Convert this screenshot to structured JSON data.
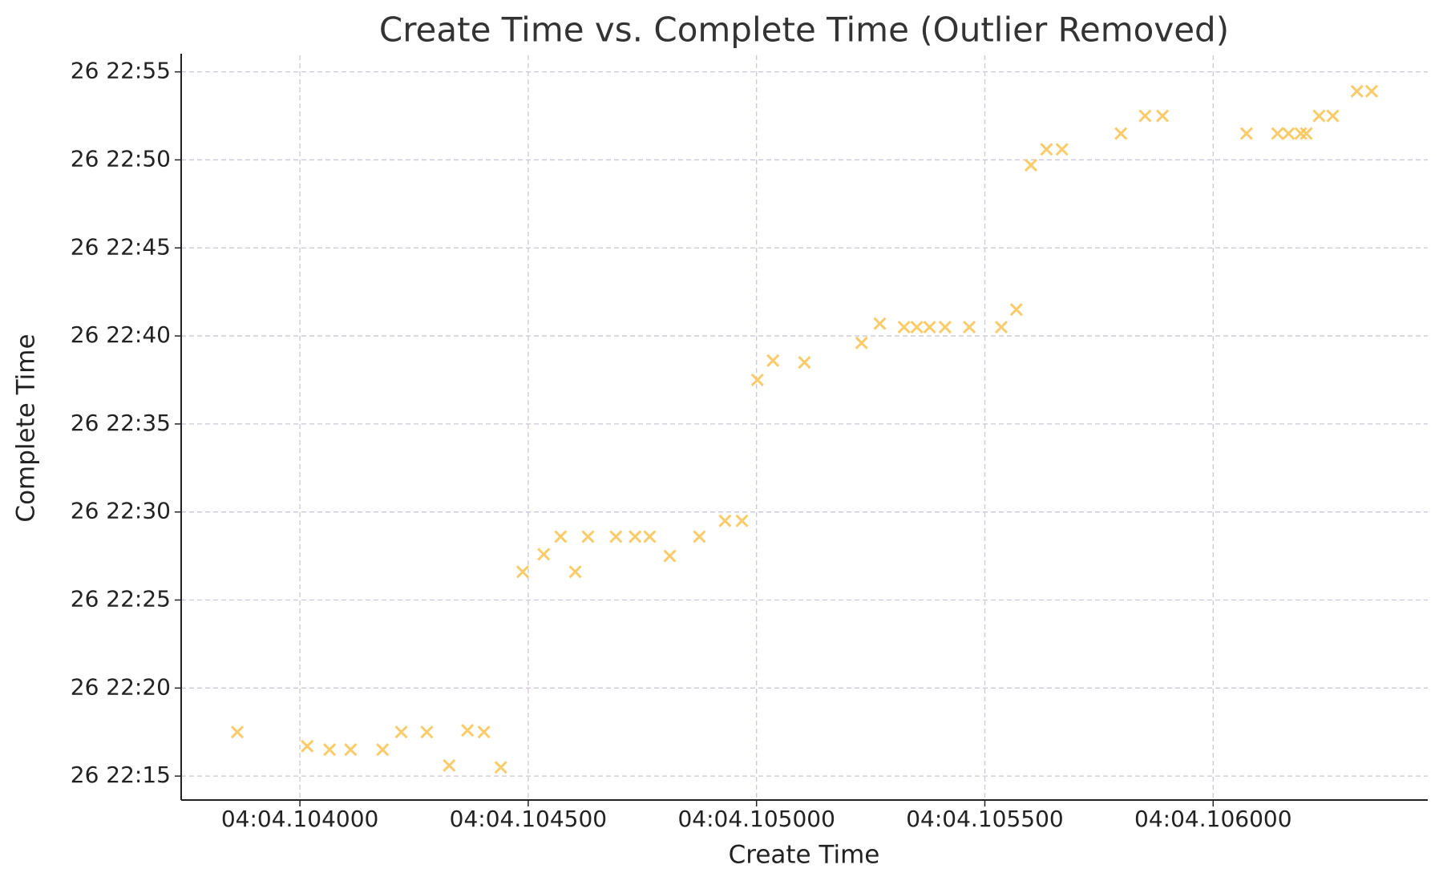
{
  "chart_data": {
    "type": "scatter",
    "title": "Create Time vs. Complete Time (Outlier Removed)",
    "x_label": "Create Time",
    "y_label": "Complete Time",
    "marker": "x",
    "grid": true,
    "xlim": [
      244.10374,
      244.10647
    ],
    "ylim": [
      1333.64,
      1375.94
    ],
    "xticks": [
      {
        "value": 244.104,
        "label": "04:04.104000"
      },
      {
        "value": 244.1045,
        "label": "04:04.104500"
      },
      {
        "value": 244.105,
        "label": "04:04.105000"
      },
      {
        "value": 244.1055,
        "label": "04:04.105500"
      },
      {
        "value": 244.106,
        "label": "04:04.106000"
      }
    ],
    "yticks": [
      {
        "value": 1335,
        "label": "26 22:15"
      },
      {
        "value": 1340,
        "label": "26 22:20"
      },
      {
        "value": 1345,
        "label": "26 22:25"
      },
      {
        "value": 1350,
        "label": "26 22:30"
      },
      {
        "value": 1355,
        "label": "26 22:35"
      },
      {
        "value": 1360,
        "label": "26 22:40"
      },
      {
        "value": 1365,
        "label": "26 22:45"
      },
      {
        "value": 1370,
        "label": "26 22:50"
      },
      {
        "value": 1375,
        "label": "26 22:55"
      }
    ],
    "series": [
      {
        "color": "#fac55a",
        "x": [
          244.103863,
          244.104016,
          244.104065,
          244.104111,
          244.104181,
          244.104222,
          244.104278,
          244.104327,
          244.104367,
          244.104403,
          244.10444,
          244.104488,
          244.104534,
          244.104571,
          244.104603,
          244.104631,
          244.104692,
          244.104734,
          244.104766,
          244.10481,
          244.104875,
          244.104931,
          244.104968,
          244.105002,
          244.105036,
          244.105105,
          244.10523,
          244.10527,
          244.105323,
          244.105351,
          244.105379,
          244.105413,
          244.105466,
          244.105536,
          244.105569,
          244.105601,
          244.105635,
          244.105669,
          244.105798,
          244.105851,
          244.105889,
          244.106073,
          244.106141,
          244.106165,
          244.106192,
          244.106204,
          244.106232,
          244.106262,
          244.106315,
          244.106347
        ],
        "values": [
          1337.5,
          1336.7,
          1336.5,
          1336.5,
          1336.5,
          1337.5,
          1337.5,
          1335.6,
          1337.6,
          1337.5,
          1335.5,
          1346.6,
          1347.6,
          1348.6,
          1346.6,
          1348.6,
          1348.6,
          1348.6,
          1348.6,
          1347.5,
          1348.6,
          1349.5,
          1349.5,
          1357.5,
          1358.6,
          1358.5,
          1359.6,
          1360.7,
          1360.5,
          1360.5,
          1360.5,
          1360.5,
          1360.5,
          1360.5,
          1361.5,
          1369.7,
          1370.6,
          1370.6,
          1371.5,
          1372.5,
          1372.5,
          1371.5,
          1371.5,
          1371.5,
          1371.5,
          1371.5,
          1372.5,
          1372.5,
          1373.9,
          1373.9
        ]
      }
    ]
  }
}
